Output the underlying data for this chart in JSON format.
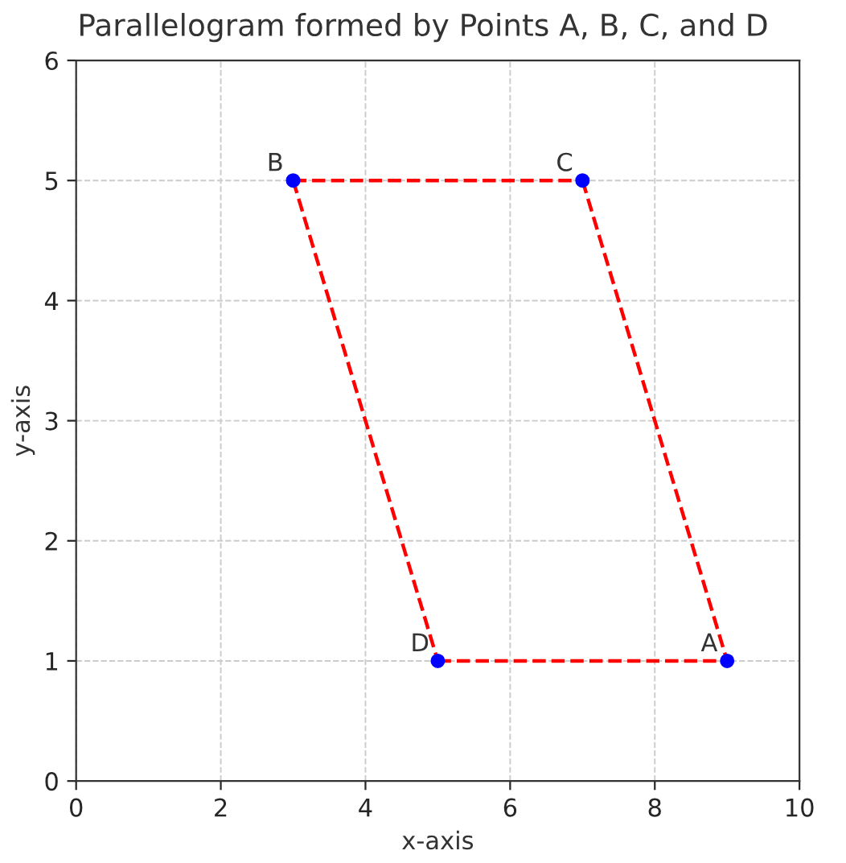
{
  "chart_data": {
    "type": "scatter",
    "title": "Parallelogram formed by Points A, B, C, and D",
    "xlabel": "x-axis",
    "ylabel": "y-axis",
    "xlim": [
      0,
      10
    ],
    "ylim": [
      0,
      6
    ],
    "xticks": [
      0,
      2,
      4,
      6,
      8,
      10
    ],
    "yticks": [
      0,
      1,
      2,
      3,
      4,
      5,
      6
    ],
    "grid": true,
    "series": [
      {
        "type": "line",
        "color": "#ff0000",
        "line_style": "dashed",
        "marker": "none",
        "x": [
          3,
          7
        ],
        "values": [
          5,
          5
        ]
      },
      {
        "type": "line",
        "color": "#ff0000",
        "line_style": "dashed",
        "marker": "none",
        "x": [
          7,
          9
        ],
        "values": [
          5,
          1
        ]
      },
      {
        "type": "line",
        "color": "#ff0000",
        "line_style": "dashed",
        "marker": "none",
        "x": [
          5,
          9
        ],
        "values": [
          1,
          1
        ]
      },
      {
        "type": "line",
        "color": "#ff0000",
        "line_style": "dashed",
        "marker": "none",
        "x": [
          3,
          5
        ],
        "values": [
          5,
          1
        ]
      },
      {
        "color": "#0000ff",
        "marker": "circle",
        "x": [
          9,
          3,
          7,
          5
        ],
        "values": [
          1,
          5,
          5,
          1
        ]
      }
    ],
    "annotations": [
      {
        "text": "A",
        "x": 9,
        "y": 1
      },
      {
        "text": "B",
        "x": 3,
        "y": 5
      },
      {
        "text": "C",
        "x": 7,
        "y": 5
      },
      {
        "text": "D",
        "x": 5,
        "y": 1
      }
    ]
  }
}
